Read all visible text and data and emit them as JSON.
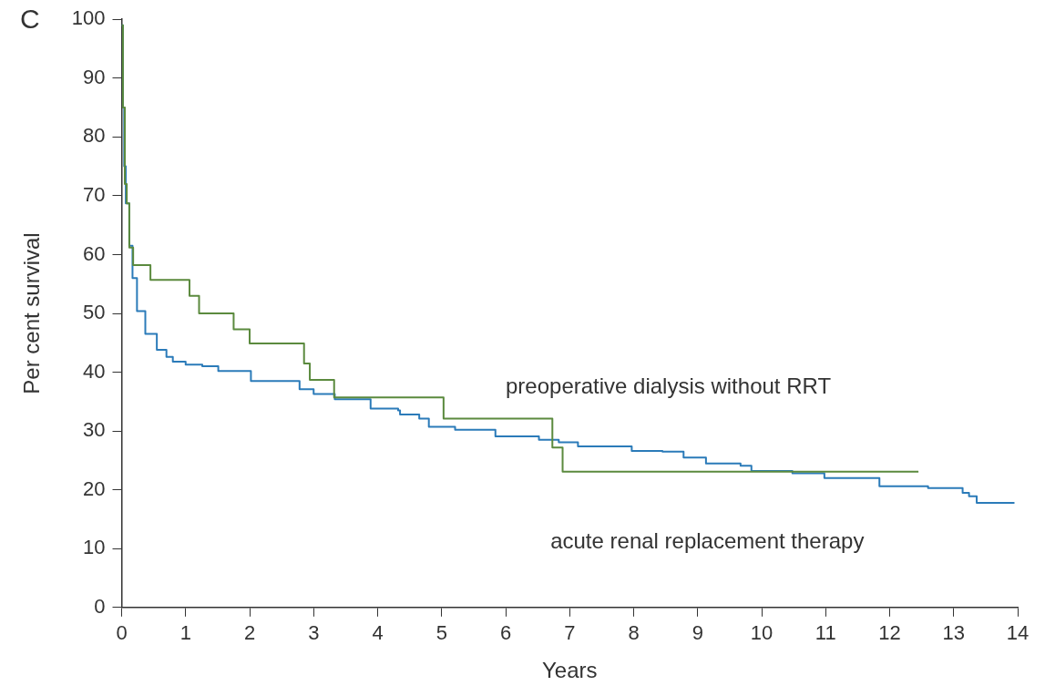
{
  "chart_data": {
    "type": "step",
    "xlabel": "Years",
    "ylabel": "Per cent survival",
    "annotations": [
      "C"
    ],
    "xlim": [
      0,
      14
    ],
    "xticks": [
      0,
      1,
      2,
      3,
      4,
      5,
      6,
      7,
      8,
      9,
      10,
      11,
      12,
      13,
      14
    ],
    "ylim": [
      0,
      100
    ],
    "yticks": [
      0,
      10,
      20,
      30,
      40,
      50,
      60,
      70,
      80,
      90,
      100
    ],
    "grid": false,
    "legend": false,
    "series": [
      {
        "name": "preoperative dialysis without RRT",
        "color": "#5b8a3e",
        "x": [
          0,
          0.02,
          0.05,
          0.08,
          0.12,
          0.18,
          0.45,
          1.06,
          1.21,
          1.75,
          2.0,
          2.85,
          2.94,
          3.32,
          5.03,
          6.73,
          6.89,
          12.45
        ],
        "values": [
          99,
          85,
          72,
          68.7,
          61.2,
          58.2,
          55.7,
          53.0,
          50.0,
          47.3,
          44.9,
          41.5,
          38.7,
          35.7,
          32.1,
          27.2,
          23.1,
          23.1
        ]
      },
      {
        "name": "acute renal replacement therapy",
        "color": "#2b7bb9",
        "x": [
          0,
          0.02,
          0.04,
          0.065,
          0.12,
          0.17,
          0.24,
          0.37,
          0.55,
          0.7,
          0.8,
          1.0,
          1.26,
          1.51,
          2.02,
          2.78,
          3.0,
          3.33,
          3.89,
          4.32,
          4.35,
          4.65,
          4.8,
          5.21,
          5.84,
          6.52,
          6.83,
          7.13,
          7.97,
          8.45,
          8.78,
          9.13,
          9.67,
          9.84,
          10.48,
          10.98,
          11.84,
          12.6,
          13.14,
          13.24,
          13.36,
          13.95
        ],
        "values": [
          99,
          85,
          75,
          68.7,
          61.5,
          56,
          50.4,
          46.5,
          43.8,
          42.6,
          41.8,
          41.3,
          41.0,
          40.2,
          38.5,
          37.1,
          36.3,
          35.4,
          33.8,
          33.5,
          32.8,
          32.1,
          30.7,
          30.2,
          29.1,
          28.5,
          28.1,
          27.4,
          26.6,
          26.5,
          25.5,
          24.5,
          24.1,
          23.2,
          22.8,
          22.0,
          20.6,
          20.3,
          19.5,
          18.9,
          17.8,
          17.8
        ]
      }
    ]
  }
}
